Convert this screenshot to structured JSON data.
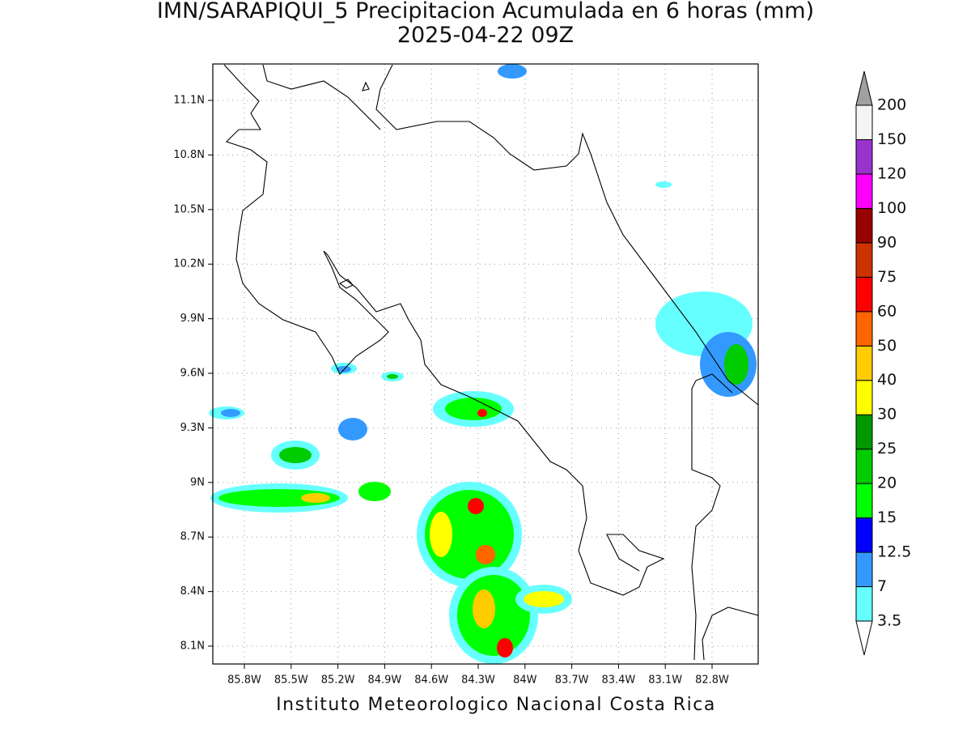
{
  "title": "IMN/SARAPIQUI_5 Precipitacion Acumulada en 6 horas (mm)",
  "subtitle": "2025-04-22 09Z",
  "map": {
    "lon_labels": [
      "85.8W",
      "85.5W",
      "85.2W",
      "84.9W",
      "84.6W",
      "84.3W",
      "84W",
      "83.7W",
      "83.4W",
      "83.1W",
      "82.8W"
    ],
    "lat_labels": [
      "11.1N",
      "10.8N",
      "10.5N",
      "10.2N",
      "9.9N",
      "9.6N",
      "9.3N",
      "9N",
      "8.7N",
      "8.4N",
      "8.1N"
    ]
  },
  "colorbar": {
    "levels": [
      3.5,
      7,
      12.5,
      15,
      20,
      25,
      30,
      40,
      50,
      60,
      75,
      90,
      100,
      120,
      150,
      200
    ],
    "colors": [
      "#66ffff",
      "#3399ff",
      "#0000ff",
      "#00ff00",
      "#00cc00",
      "#009900",
      "#ffff00",
      "#ffcc00",
      "#ff6600",
      "#ff0000",
      "#cc3300",
      "#990000",
      "#ff00ff",
      "#9933cc",
      "#f4f4f4"
    ],
    "above_color": "#a0a0a0",
    "below_color": "#ffffff"
  },
  "footer": "Instituto Meteorologico Nacional Costa Rica"
}
